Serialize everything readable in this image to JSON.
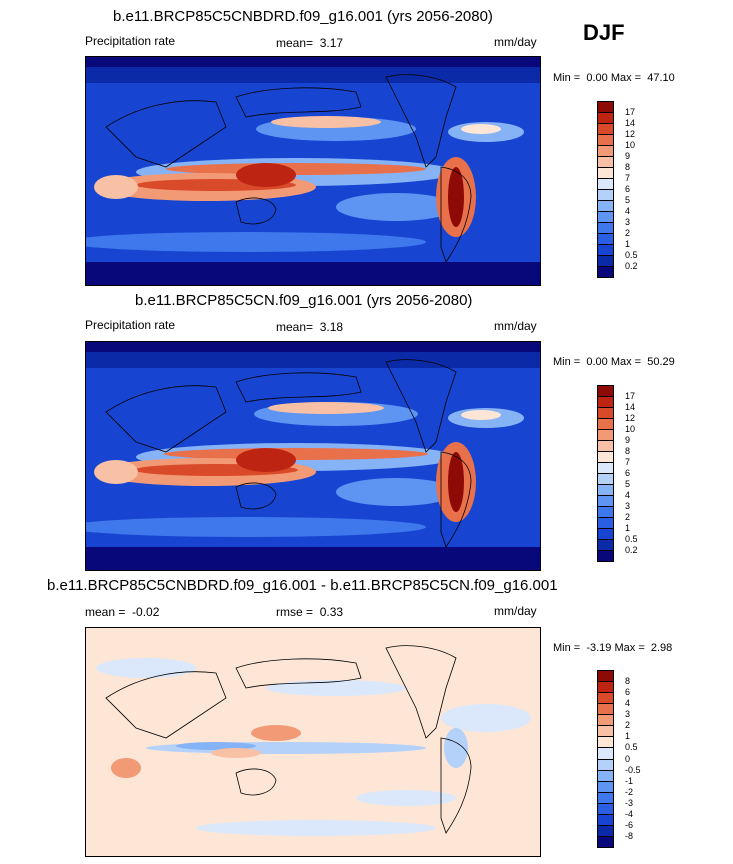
{
  "figure": {
    "season": "DJF"
  },
  "chart_data": [
    {
      "type": "heatmap",
      "title": "b.e11.BRCP85C5CNBDRD.f09_g16.001 (yrs 2056-2080)",
      "variable_label": "Precipitation rate",
      "mean_label": "mean=",
      "mean_value": "3.17",
      "units": "mm/day",
      "min_label": "Min =",
      "min_value": "0.00",
      "max_label": "Max =",
      "max_value": "47.10",
      "colorbar_levels": [
        "0.2",
        "0.5",
        "1",
        "2",
        "3",
        "4",
        "5",
        "6",
        "7",
        "8",
        "9",
        "10",
        "12",
        "14",
        "17"
      ],
      "colorbar_colors": [
        "#08087a",
        "#0b2aa8",
        "#1745d1",
        "#2a5ee3",
        "#3f78ec",
        "#5e95f2",
        "#86b3f6",
        "#b4d1f9",
        "#dbe8fb",
        "#fde6d6",
        "#f8c1a6",
        "#f29a76",
        "#e8714c",
        "#d94a2a",
        "#bd2512",
        "#8e0a06"
      ]
    },
    {
      "type": "heatmap",
      "title": "b.e11.BRCP85C5CN.f09_g16.001 (yrs 2056-2080)",
      "variable_label": "Precipitation rate",
      "mean_label": "mean=",
      "mean_value": "3.18",
      "units": "mm/day",
      "min_label": "Min =",
      "min_value": "0.00",
      "max_label": "Max =",
      "max_value": "50.29",
      "colorbar_levels": [
        "0.2",
        "0.5",
        "1",
        "2",
        "3",
        "4",
        "5",
        "6",
        "7",
        "8",
        "9",
        "10",
        "12",
        "14",
        "17"
      ],
      "colorbar_colors": [
        "#08087a",
        "#0b2aa8",
        "#1745d1",
        "#2a5ee3",
        "#3f78ec",
        "#5e95f2",
        "#86b3f6",
        "#b4d1f9",
        "#dbe8fb",
        "#fde6d6",
        "#f8c1a6",
        "#f29a76",
        "#e8714c",
        "#d94a2a",
        "#bd2512",
        "#8e0a06"
      ]
    },
    {
      "type": "heatmap",
      "title": "b.e11.BRCP85C5CNBDRD.f09_g16.001 - b.e11.BRCP85C5CN.f09_g16.001",
      "mean_label": "mean =",
      "mean_value": "-0.02",
      "rmse_label": "rmse =",
      "rmse_value": "0.33",
      "units": "mm/day",
      "min_label": "Min =",
      "min_value": "-3.19",
      "max_label": "Max =",
      "max_value": "2.98",
      "colorbar_levels": [
        "-8",
        "-6",
        "-4",
        "-3",
        "-2",
        "-1",
        "-0.5",
        "0",
        "0.5",
        "1",
        "2",
        "3",
        "4",
        "6",
        "8"
      ],
      "colorbar_colors": [
        "#08087a",
        "#0b2aa8",
        "#1745d1",
        "#2a5ee3",
        "#3f78ec",
        "#5e95f2",
        "#86b3f6",
        "#b4d1f9",
        "#dbe8fb",
        "#fde6d6",
        "#f8c1a6",
        "#f29a76",
        "#e8714c",
        "#d94a2a",
        "#bd2512",
        "#8e0a06"
      ]
    }
  ]
}
